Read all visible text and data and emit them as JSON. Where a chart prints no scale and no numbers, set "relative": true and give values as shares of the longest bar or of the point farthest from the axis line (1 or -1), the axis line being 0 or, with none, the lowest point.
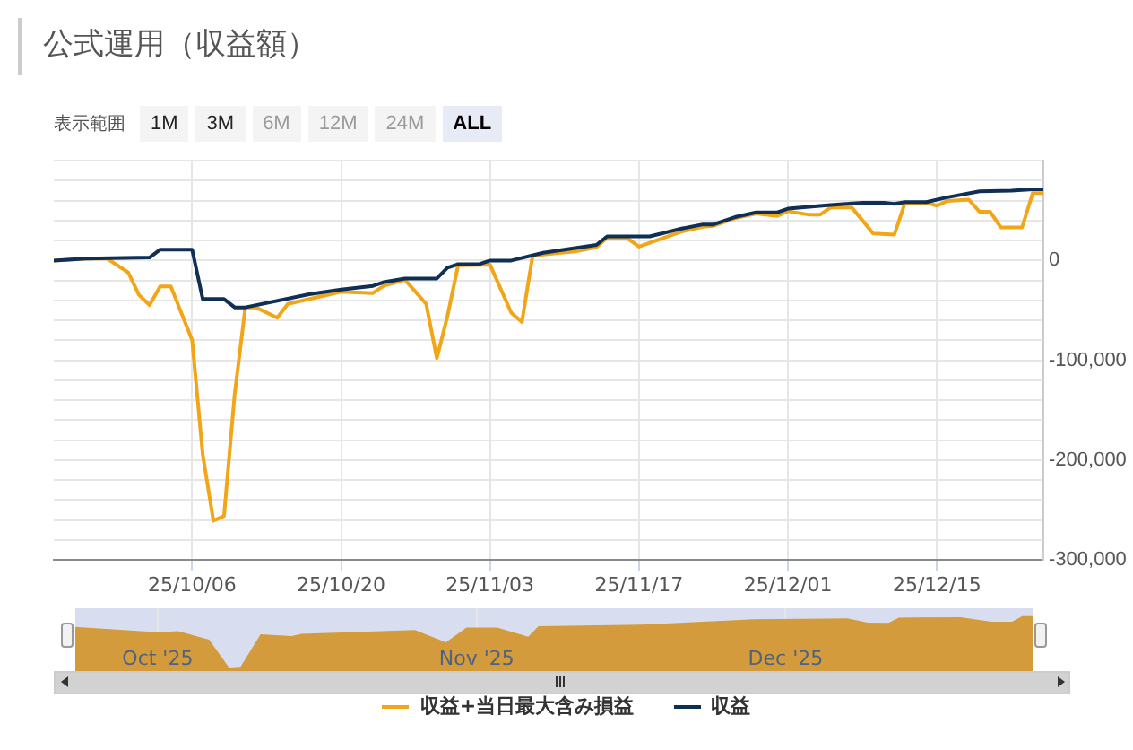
{
  "chart_data": [
    {
      "type": "line",
      "title": "公式運用（収益額）",
      "annotations": [
        "表示範囲",
        "1M",
        "3M",
        "6M",
        "12M",
        "24M",
        "ALL"
      ],
      "xlim": [
        "2025-09-23",
        "2025-12-25"
      ],
      "xticks": [
        {
          "value": "2025-10-06",
          "label": "25/10/06"
        },
        {
          "value": "2025-10-20",
          "label": "25/10/20"
        },
        {
          "value": "2025-11-03",
          "label": "25/11/03"
        },
        {
          "value": "2025-11-17",
          "label": "25/11/17"
        },
        {
          "value": "2025-12-01",
          "label": "25/12/01"
        },
        {
          "value": "2025-12-15",
          "label": "25/12/15"
        }
      ],
      "ylim": [
        -300000,
        100000
      ],
      "yticks": [
        {
          "value": -300000,
          "label": "-300,000"
        },
        {
          "value": -280000,
          "label": null
        },
        {
          "value": -260000,
          "label": null
        },
        {
          "value": -240000,
          "label": null
        },
        {
          "value": -220000,
          "label": null
        },
        {
          "value": -200000,
          "label": "-200,000"
        },
        {
          "value": -180000,
          "label": null
        },
        {
          "value": -160000,
          "label": null
        },
        {
          "value": -140000,
          "label": null
        },
        {
          "value": -120000,
          "label": null
        },
        {
          "value": -100000,
          "label": "-100,000"
        },
        {
          "value": -80000,
          "label": null
        },
        {
          "value": -60000,
          "label": null
        },
        {
          "value": -40000,
          "label": null
        },
        {
          "value": -20000,
          "label": null
        },
        {
          "value": 0,
          "label": "0"
        },
        {
          "value": 20000,
          "label": null
        },
        {
          "value": 40000,
          "label": null
        },
        {
          "value": 60000,
          "label": null
        },
        {
          "value": 80000,
          "label": null
        },
        {
          "value": 100000,
          "label": null
        }
      ],
      "grid": true,
      "legend": "bottom",
      "series": [
        {
          "name": "収益+当日最大含み損益",
          "color": "#f2a516",
          "x": [
            "2025-09-23",
            "2025-09-26",
            "2025-09-28",
            "2025-09-30",
            "2025-10-01",
            "2025-10-02",
            "2025-10-03",
            "2025-10-04",
            "2025-10-06",
            "2025-10-07",
            "2025-10-08",
            "2025-10-09",
            "2025-10-10",
            "2025-10-11",
            "2025-10-12",
            "2025-10-14",
            "2025-10-15",
            "2025-10-20",
            "2025-10-23",
            "2025-10-24",
            "2025-10-26",
            "2025-10-28",
            "2025-10-29",
            "2025-10-30",
            "2025-10-31",
            "2025-11-03",
            "2025-11-05",
            "2025-11-06",
            "2025-11-07",
            "2025-11-09",
            "2025-11-11",
            "2025-11-13",
            "2025-11-14",
            "2025-11-16",
            "2025-11-17",
            "2025-11-21",
            "2025-11-23",
            "2025-11-24",
            "2025-11-26",
            "2025-11-28",
            "2025-11-30",
            "2025-12-01",
            "2025-12-03",
            "2025-12-04",
            "2025-12-05",
            "2025-12-07",
            "2025-12-09",
            "2025-12-11",
            "2025-12-12",
            "2025-12-14",
            "2025-12-15",
            "2025-12-16",
            "2025-12-18",
            "2025-12-19",
            "2025-12-20",
            "2025-12-21",
            "2025-12-23",
            "2025-12-24",
            "2025-12-25"
          ],
          "values": [
            0,
            2000,
            2000,
            -12000,
            -34400,
            -44700,
            -26000,
            -26000,
            -79700,
            -194500,
            -260900,
            -256000,
            -134000,
            -47000,
            -47000,
            -57400,
            -43500,
            -31400,
            -32600,
            -25400,
            -19300,
            -43500,
            -97800,
            -55600,
            -4800,
            -4200,
            -52500,
            -61600,
            4800,
            7200,
            9100,
            13300,
            22900,
            21700,
            13900,
            29000,
            33800,
            34800,
            42300,
            47100,
            44700,
            49500,
            45900,
            45900,
            53100,
            53100,
            27200,
            26000,
            58000,
            58000,
            55000,
            59800,
            61000,
            48900,
            48900,
            33200,
            33200,
            67600,
            67600
          ]
        },
        {
          "name": "収益",
          "color": "#0f2f55",
          "x": [
            "2025-09-23",
            "2025-09-26",
            "2025-10-02",
            "2025-10-03",
            "2025-10-06",
            "2025-10-07",
            "2025-10-09",
            "2025-10-10",
            "2025-10-11",
            "2025-10-17",
            "2025-10-20",
            "2025-10-23",
            "2025-10-24",
            "2025-10-26",
            "2025-10-29",
            "2025-10-30",
            "2025-10-31",
            "2025-11-02",
            "2025-11-03",
            "2025-11-05",
            "2025-11-08",
            "2025-11-10",
            "2025-11-13",
            "2025-11-14",
            "2025-11-18",
            "2025-11-21",
            "2025-11-23",
            "2025-11-24",
            "2025-11-26",
            "2025-11-28",
            "2025-11-30",
            "2025-12-01",
            "2025-12-05",
            "2025-12-08",
            "2025-12-10",
            "2025-12-11",
            "2025-12-12",
            "2025-12-14",
            "2025-12-16",
            "2025-12-19",
            "2025-12-22",
            "2025-12-24",
            "2025-12-25"
          ],
          "values": [
            0,
            2000,
            3000,
            11000,
            11000,
            -38600,
            -38600,
            -47000,
            -47000,
            -33800,
            -29000,
            -25400,
            -21700,
            -18000,
            -18000,
            -7200,
            -3600,
            -3600,
            0,
            0,
            7800,
            10900,
            15700,
            24200,
            24200,
            32000,
            36200,
            36200,
            43500,
            48300,
            48300,
            52000,
            55600,
            58000,
            58000,
            56800,
            58600,
            58600,
            63400,
            69400,
            70000,
            71300,
            71300
          ]
        }
      ]
    },
    {
      "type": "area",
      "relative": true,
      "color": "#d39b3b",
      "grid": "x",
      "tick_labels": "x",
      "xlim": [
        "2025-09-23",
        "2025-12-25"
      ],
      "xticks": [
        {
          "value": "2025-10-01",
          "label": "Oct '25"
        },
        {
          "value": "2025-11-01",
          "label": "Nov '25"
        },
        {
          "value": "2025-12-01",
          "label": "Dec '25"
        }
      ],
      "x": [
        "2025-09-23",
        "2025-10-01",
        "2025-10-03",
        "2025-10-06",
        "2025-10-08",
        "2025-10-09",
        "2025-10-11",
        "2025-10-14",
        "2025-10-15",
        "2025-10-26",
        "2025-10-29",
        "2025-10-31",
        "2025-11-03",
        "2025-11-06",
        "2025-11-07",
        "2025-11-17",
        "2025-11-28",
        "2025-12-07",
        "2025-12-09",
        "2025-12-11",
        "2025-12-12",
        "2025-12-18",
        "2025-12-21",
        "2025-12-23",
        "2025-12-24",
        "2025-12-25"
      ],
      "values": [
        0.794,
        0.69,
        0.715,
        0.552,
        0,
        0.015,
        0.651,
        0.619,
        0.662,
        0.735,
        0.497,
        0.78,
        0.781,
        0.607,
        0.809,
        0.837,
        0.938,
        0.956,
        0.877,
        0.873,
        0.971,
        0.98,
        0.895,
        0.895,
        1,
        1
      ]
    }
  ]
}
